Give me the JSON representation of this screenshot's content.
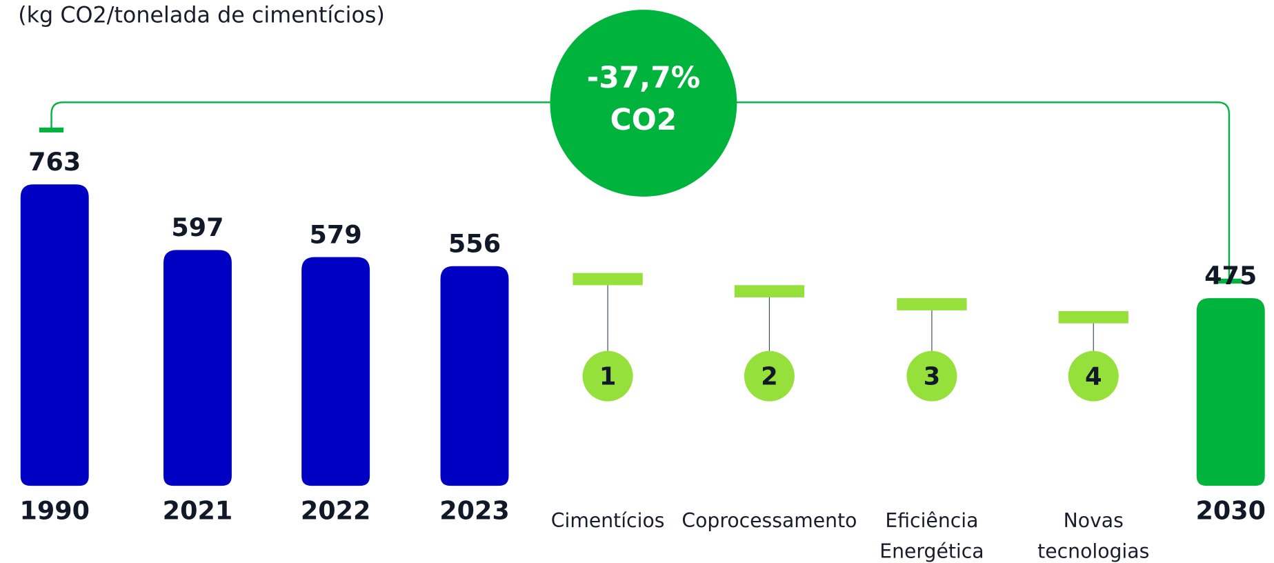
{
  "chart_data": {
    "type": "bar",
    "subtitle": "(kg CO2/tonelada de cimentícios)",
    "categories": [
      "1990",
      "2021",
      "2022",
      "2023",
      "2030"
    ],
    "values": [
      763,
      597,
      579,
      556,
      475
    ],
    "colors": [
      "#0000c2",
      "#0000c2",
      "#0000c2",
      "#0000c2",
      "#00b33c"
    ],
    "ylim": [
      0,
      800
    ],
    "badge": {
      "value": "-37,7%",
      "unit": "CO2"
    },
    "levers": [
      {
        "number": 1,
        "label": [
          "Cimentícios"
        ]
      },
      {
        "number": 2,
        "label": [
          "Coprocessamento"
        ]
      },
      {
        "number": 3,
        "label": [
          "Eficiência",
          "Energética"
        ]
      },
      {
        "number": 4,
        "label": [
          "Novas",
          "tecnologias"
        ]
      }
    ],
    "lever_color": "#96e03c"
  }
}
